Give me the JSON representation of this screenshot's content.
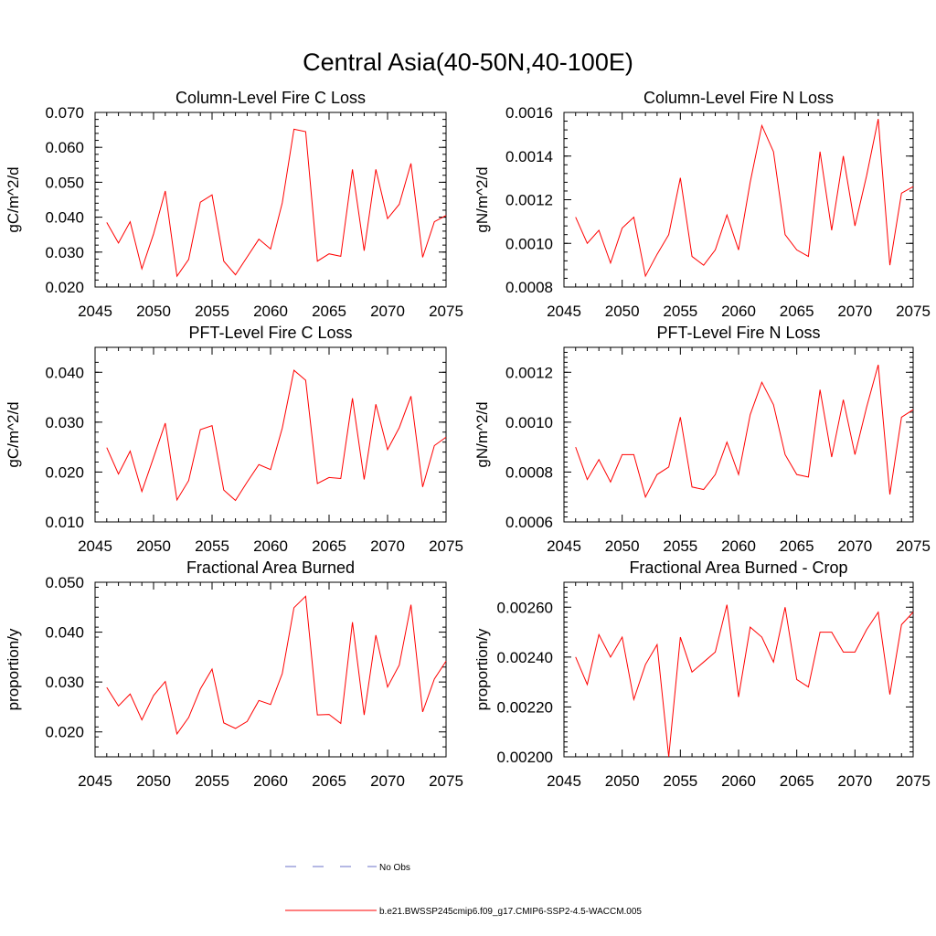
{
  "main_title": "Central Asia(40-50N,40-100E)",
  "chart_data": [
    {
      "type": "line",
      "title": "Column-Level Fire C Loss",
      "ylabel": "gC/m^2/d",
      "xlabel": "",
      "xlim": [
        2045,
        2075
      ],
      "ylim": [
        0.02,
        0.07
      ],
      "xticks": [
        "2045",
        "2050",
        "2055",
        "2060",
        "2065",
        "2070",
        "2075"
      ],
      "yticks": [
        "0.020",
        "0.030",
        "0.040",
        "0.050",
        "0.060",
        "0.070"
      ],
      "x": [
        2046,
        2047,
        2048,
        2049,
        2050,
        2051,
        2052,
        2053,
        2054,
        2055,
        2056,
        2057,
        2058,
        2059,
        2060,
        2061,
        2062,
        2063,
        2064,
        2065,
        2066,
        2067,
        2068,
        2069,
        2070,
        2071,
        2072,
        2073,
        2074,
        2075
      ],
      "series": [
        {
          "name": "b.e21.BWSSP245cmip6.f09_g17.CMIP6-SSP2-4.5-WACCM.005",
          "color": "#ff0000",
          "values": [
            0.0385,
            0.0326,
            0.0387,
            0.0252,
            0.0352,
            0.0475,
            0.0231,
            0.0279,
            0.0443,
            0.0464,
            0.0274,
            0.0235,
            0.0286,
            0.0337,
            0.0309,
            0.0441,
            0.0652,
            0.0645,
            0.0274,
            0.0295,
            0.0288,
            0.0537,
            0.0304,
            0.0537,
            0.0396,
            0.0437,
            0.0554,
            0.0285,
            0.0387,
            0.0405
          ]
        }
      ]
    },
    {
      "type": "line",
      "title": "Column-Level Fire N Loss",
      "ylabel": "gN/m^2/d",
      "xlabel": "",
      "xlim": [
        2045,
        2075
      ],
      "ylim": [
        0.0008,
        0.0016
      ],
      "xticks": [
        "2045",
        "2050",
        "2055",
        "2060",
        "2065",
        "2070",
        "2075"
      ],
      "yticks": [
        "0.0008",
        "0.0010",
        "0.0012",
        "0.0014",
        "0.0016"
      ],
      "x": [
        2046,
        2047,
        2048,
        2049,
        2050,
        2051,
        2052,
        2053,
        2054,
        2055,
        2056,
        2057,
        2058,
        2059,
        2060,
        2061,
        2062,
        2063,
        2064,
        2065,
        2066,
        2067,
        2068,
        2069,
        2070,
        2071,
        2072,
        2073,
        2074,
        2075
      ],
      "series": [
        {
          "name": "b.e21.BWSSP245cmip6.f09_g17.CMIP6-SSP2-4.5-WACCM.005",
          "color": "#ff0000",
          "values": [
            0.00112,
            0.001,
            0.00106,
            0.00091,
            0.00107,
            0.00112,
            0.00085,
            0.00095,
            0.00104,
            0.0013,
            0.00094,
            0.0009,
            0.00097,
            0.00113,
            0.00097,
            0.00128,
            0.00154,
            0.00142,
            0.00104,
            0.00097,
            0.00094,
            0.00142,
            0.00106,
            0.0014,
            0.00108,
            0.00131,
            0.00157,
            0.0009,
            0.00123,
            0.00126
          ]
        }
      ]
    },
    {
      "type": "line",
      "title": "PFT-Level Fire C Loss",
      "ylabel": "gC/m^2/d",
      "xlabel": "",
      "xlim": [
        2045,
        2075
      ],
      "ylim": [
        0.01,
        0.045
      ],
      "xticks": [
        "2045",
        "2050",
        "2055",
        "2060",
        "2065",
        "2070",
        "2075"
      ],
      "yticks": [
        "0.010",
        "0.020",
        "0.030",
        "0.040"
      ],
      "x": [
        2046,
        2047,
        2048,
        2049,
        2050,
        2051,
        2052,
        2053,
        2054,
        2055,
        2056,
        2057,
        2058,
        2059,
        2060,
        2061,
        2062,
        2063,
        2064,
        2065,
        2066,
        2067,
        2068,
        2069,
        2070,
        2071,
        2072,
        2073,
        2074,
        2075
      ],
      "series": [
        {
          "name": "b.e21.BWSSP245cmip6.f09_g17.CMIP6-SSP2-4.5-WACCM.005",
          "color": "#ff0000",
          "values": [
            0.0249,
            0.0196,
            0.0242,
            0.0161,
            0.0229,
            0.0298,
            0.0144,
            0.0183,
            0.0285,
            0.0293,
            0.0164,
            0.0143,
            0.018,
            0.0215,
            0.0205,
            0.0288,
            0.0404,
            0.0384,
            0.0177,
            0.0189,
            0.0187,
            0.0348,
            0.0185,
            0.0336,
            0.0245,
            0.0289,
            0.0352,
            0.017,
            0.0253,
            0.027
          ]
        }
      ]
    },
    {
      "type": "line",
      "title": "PFT-Level Fire N Loss",
      "ylabel": "gN/m^2/d",
      "xlabel": "",
      "xlim": [
        2045,
        2075
      ],
      "ylim": [
        0.0006,
        0.0013
      ],
      "xticks": [
        "2045",
        "2050",
        "2055",
        "2060",
        "2065",
        "2070",
        "2075"
      ],
      "yticks": [
        "0.0006",
        "0.0008",
        "0.0010",
        "0.0012"
      ],
      "x": [
        2046,
        2047,
        2048,
        2049,
        2050,
        2051,
        2052,
        2053,
        2054,
        2055,
        2056,
        2057,
        2058,
        2059,
        2060,
        2061,
        2062,
        2063,
        2064,
        2065,
        2066,
        2067,
        2068,
        2069,
        2070,
        2071,
        2072,
        2073,
        2074,
        2075
      ],
      "series": [
        {
          "name": "b.e21.BWSSP245cmip6.f09_g17.CMIP6-SSP2-4.5-WACCM.005",
          "color": "#ff0000",
          "values": [
            0.0009,
            0.00077,
            0.00085,
            0.00076,
            0.00087,
            0.00087,
            0.0007,
            0.00079,
            0.00082,
            0.00102,
            0.00074,
            0.00073,
            0.00079,
            0.00092,
            0.00079,
            0.00103,
            0.00116,
            0.00107,
            0.00087,
            0.00079,
            0.00078,
            0.00113,
            0.00086,
            0.00109,
            0.00087,
            0.00106,
            0.00123,
            0.00071,
            0.00102,
            0.00105
          ]
        }
      ]
    },
    {
      "type": "line",
      "title": "Fractional Area Burned",
      "ylabel": "proportion/y",
      "xlabel": "",
      "xlim": [
        2045,
        2075
      ],
      "ylim": [
        0.015,
        0.05
      ],
      "xticks": [
        "2045",
        "2050",
        "2055",
        "2060",
        "2065",
        "2070",
        "2075"
      ],
      "yticks": [
        "0.020",
        "0.030",
        "0.040",
        "0.050"
      ],
      "x": [
        2046,
        2047,
        2048,
        2049,
        2050,
        2051,
        2052,
        2053,
        2054,
        2055,
        2056,
        2057,
        2058,
        2059,
        2060,
        2061,
        2062,
        2063,
        2064,
        2065,
        2066,
        2067,
        2068,
        2069,
        2070,
        2071,
        2072,
        2073,
        2074,
        2075
      ],
      "series": [
        {
          "name": "b.e21.BWSSP245cmip6.f09_g17.CMIP6-SSP2-4.5-WACCM.005",
          "color": "#ff0000",
          "values": [
            0.0289,
            0.0252,
            0.0276,
            0.0224,
            0.0273,
            0.0301,
            0.0196,
            0.0229,
            0.0286,
            0.0326,
            0.0218,
            0.0207,
            0.0221,
            0.0263,
            0.0255,
            0.0317,
            0.0449,
            0.0472,
            0.0234,
            0.0235,
            0.0217,
            0.042,
            0.0234,
            0.0394,
            0.029,
            0.0334,
            0.0455,
            0.024,
            0.0306,
            0.0342
          ]
        }
      ]
    },
    {
      "type": "line",
      "title": "Fractional Area Burned - Crop",
      "ylabel": "proportion/y",
      "xlabel": "",
      "xlim": [
        2045,
        2075
      ],
      "ylim": [
        0.002,
        0.0027
      ],
      "xticks": [
        "2045",
        "2050",
        "2055",
        "2060",
        "2065",
        "2070",
        "2075"
      ],
      "yticks": [
        "0.00200",
        "0.00220",
        "0.00240",
        "0.00260"
      ],
      "x": [
        2046,
        2047,
        2048,
        2049,
        2050,
        2051,
        2052,
        2053,
        2054,
        2055,
        2056,
        2057,
        2058,
        2059,
        2060,
        2061,
        2062,
        2063,
        2064,
        2065,
        2066,
        2067,
        2068,
        2069,
        2070,
        2071,
        2072,
        2073,
        2074,
        2075
      ],
      "series": [
        {
          "name": "b.e21.BWSSP245cmip6.f09_g17.CMIP6-SSP2-4.5-WACCM.005",
          "color": "#ff0000",
          "values": [
            0.0024,
            0.00229,
            0.00249,
            0.0024,
            0.00248,
            0.00223,
            0.00237,
            0.00245,
            0.002,
            0.00248,
            0.00234,
            0.00238,
            0.00242,
            0.00261,
            0.00224,
            0.00252,
            0.00248,
            0.00238,
            0.0026,
            0.00231,
            0.00228,
            0.0025,
            0.0025,
            0.00242,
            0.00242,
            0.00251,
            0.00258,
            0.00225,
            0.00253,
            0.00258
          ]
        }
      ]
    }
  ],
  "legend": {
    "items": [
      {
        "label": "No Obs",
        "color": "#6b72c8",
        "style": "dashed"
      },
      {
        "label": "b.e21.BWSSP245cmip6.f09_g17.CMIP6-SSP2-4.5-WACCM.005",
        "color": "#ff0000",
        "style": "solid"
      }
    ]
  }
}
